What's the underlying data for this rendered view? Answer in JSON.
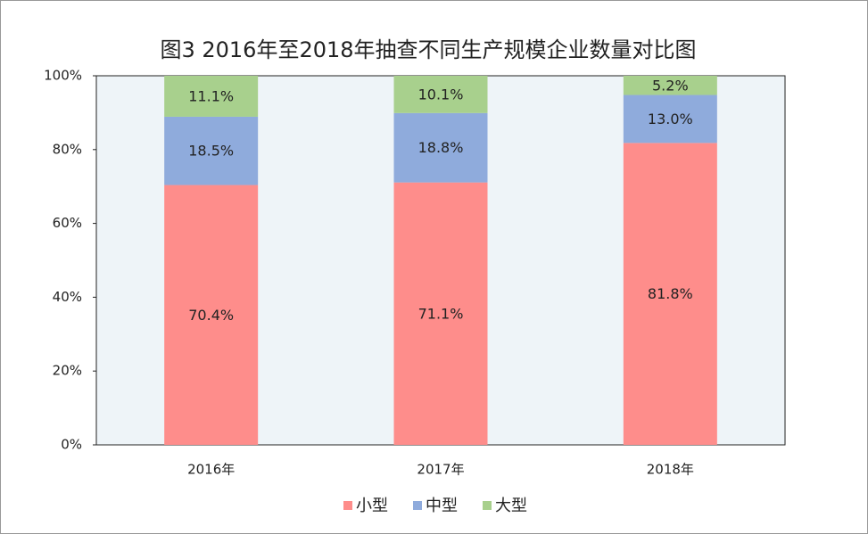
{
  "chart_data": {
    "type": "stacked_bar",
    "title": "图3 2016年至2018年抽查不同生产规模企业数量对比图",
    "categories": [
      "2016年",
      "2017年",
      "2018年"
    ],
    "series": [
      {
        "name": "小型",
        "color": "#fe8d8b",
        "values": [
          70.4,
          71.1,
          81.8
        ],
        "value_labels": [
          "70.4%",
          "71.1%",
          "81.8%"
        ]
      },
      {
        "name": "中型",
        "color": "#8fabdc",
        "values": [
          18.5,
          18.8,
          13.0
        ],
        "value_labels": [
          "18.5%",
          "18.8%",
          "13.0%"
        ]
      },
      {
        "name": "大型",
        "color": "#a8d08d",
        "values": [
          11.1,
          10.1,
          5.2
        ],
        "value_labels": [
          "11.1%",
          "10.1%",
          "5.2%"
        ]
      }
    ],
    "ylim": [
      0,
      100
    ],
    "yticks": [
      {
        "value": 0,
        "label": "0%"
      },
      {
        "value": 20,
        "label": "20%"
      },
      {
        "value": 40,
        "label": "40%"
      },
      {
        "value": 60,
        "label": "60%"
      },
      {
        "value": 80,
        "label": "80%"
      },
      {
        "value": 100,
        "label": "100%"
      }
    ],
    "legend": "bottom"
  }
}
